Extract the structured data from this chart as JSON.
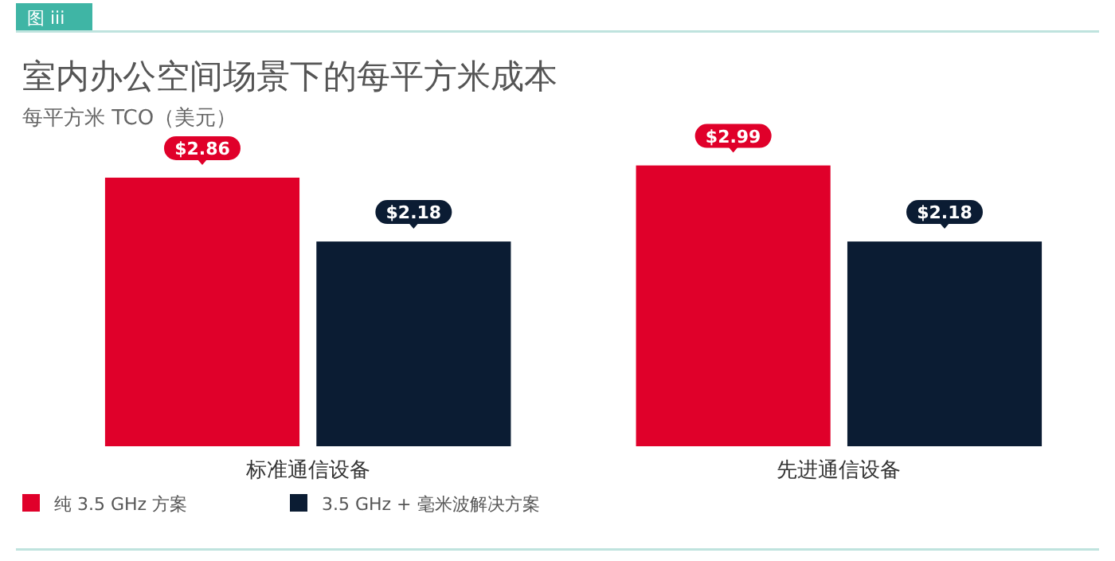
{
  "chart_data": {
    "type": "bar",
    "title": "室内办公空间场景下的每平方米成本",
    "subtitle": "每平方米 TCO（美元）",
    "annotations": [
      "图 iii"
    ],
    "categories": [
      "标准通信设备",
      "先进通信设备"
    ],
    "series": [
      {
        "name": "纯 3.5 GHz 方案",
        "color": "#e0002a",
        "values": [
          2.86,
          2.99
        ],
        "value_labels": [
          "$2.86",
          "$2.99"
        ]
      },
      {
        "name": "3.5 GHz + 毫米波解决方案",
        "color": "#0b1c33",
        "values": [
          2.18,
          2.18
        ],
        "value_labels": [
          "$2.18",
          "$2.18"
        ]
      }
    ],
    "legend": "bottom left"
  }
}
